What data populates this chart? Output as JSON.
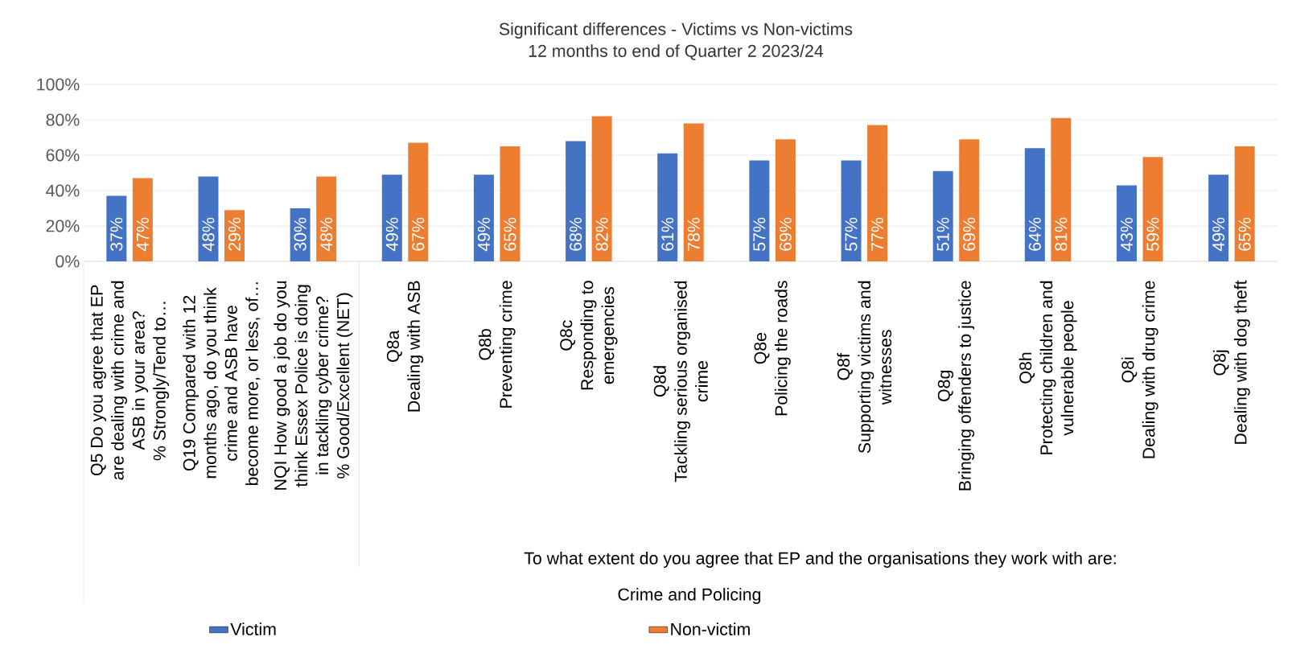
{
  "chart_data": {
    "type": "bar",
    "title": "Significant differences - Victims vs Non-victims",
    "subtitle": "12 months to end of Quarter 2 2023/24",
    "annotations": [
      "To what extent do you agree that EP and the organisations they work with are:",
      "Crime and Policing"
    ],
    "categories": [
      "Q5 Do you agree that EP\nare dealing with crime and\nASB in your area?\n% Strongly/Tend to…",
      "Q19 Compared with 12\nmonths ago, do you think\ncrime and ASB have\nbecome more, or less, of…",
      "NQI How good a job do you\nthink Essex Police is doing\nin tackling cyber crime?\n% Good/Excellent (NET)",
      "Q8a\nDealing with ASB",
      "Q8b\nPreventing crime",
      "Q8c\nResponding to\nemergencies",
      "Q8d\nTackling serious organised\ncrime",
      "Q8e\nPolicing the roads",
      "Q8f\nSupporting victims and\nwitnesses",
      "Q8g\nBringing offenders to justice",
      "Q8h\nProtecting children and\nvulnerable people",
      "Q8i\nDealing with drug crime",
      "Q8j\nDealing with dog theft"
    ],
    "series": [
      {
        "name": "Victim",
        "color": "#4472c4",
        "values": [
          37,
          48,
          30,
          49,
          49,
          68,
          61,
          57,
          57,
          51,
          64,
          43,
          49
        ],
        "value_labels": [
          "37%",
          "48%",
          "30%",
          "49%",
          "49%",
          "68%",
          "61%",
          "57%",
          "57%",
          "51%",
          "64%",
          "43%",
          "49%"
        ]
      },
      {
        "name": "Non-victim",
        "color": "#ed7d31",
        "values": [
          47,
          29,
          48,
          67,
          65,
          82,
          78,
          69,
          77,
          69,
          81,
          59,
          65
        ],
        "value_labels": [
          "47%",
          "29%",
          "48%",
          "67%",
          "65%",
          "82%",
          "78%",
          "69%",
          "77%",
          "69%",
          "81%",
          "59%",
          "65%"
        ]
      }
    ],
    "ylim": [
      0,
      100
    ],
    "yticks": [
      {
        "value": 0,
        "label": "0%"
      },
      {
        "value": 20,
        "label": "20%"
      },
      {
        "value": 40,
        "label": "40%"
      },
      {
        "value": 60,
        "label": "60%"
      },
      {
        "value": 80,
        "label": "80%"
      },
      {
        "value": 100,
        "label": "100%"
      }
    ],
    "grid": "y",
    "legend": "bottom"
  }
}
